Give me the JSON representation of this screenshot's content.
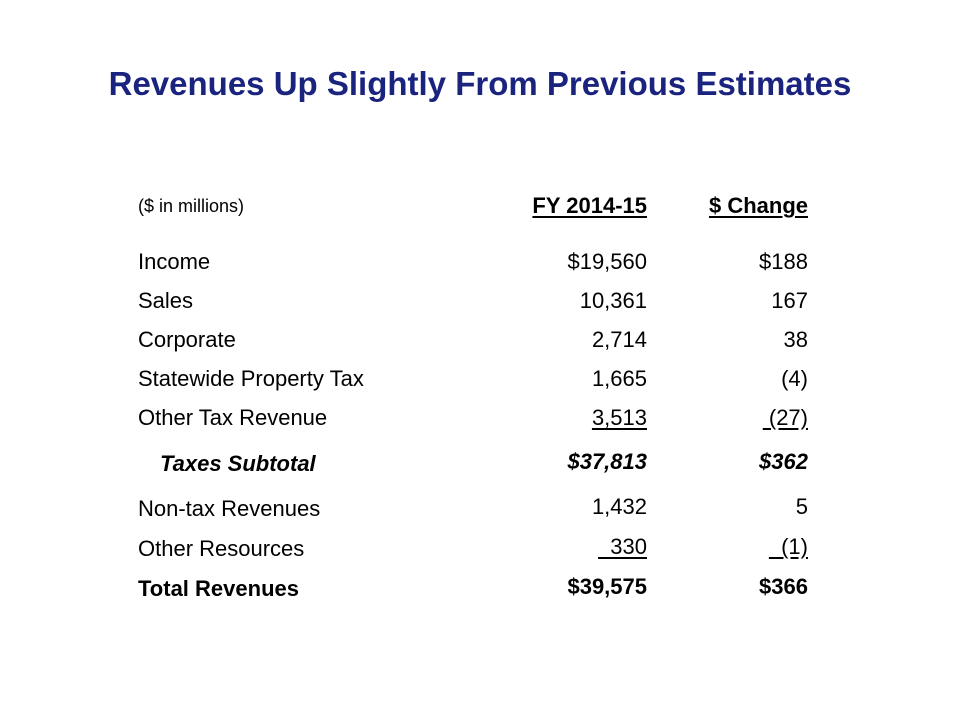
{
  "title": "Revenues Up Slightly From Previous Estimates",
  "table": {
    "units_label": "($ in millions)",
    "col_fy": "FY 2014-15",
    "col_change": "$ Change",
    "rows": [
      {
        "label": "Income",
        "fy": "$19,560",
        "change": "$188"
      },
      {
        "label": "Sales",
        "fy": "10,361",
        "change": "167"
      },
      {
        "label": "Corporate",
        "fy": "2,714",
        "change": "38"
      },
      {
        "label": "Statewide Property Tax",
        "fy": "1,665",
        "change": "(4)"
      },
      {
        "label": "Other Tax Revenue",
        "fy": "3,513",
        "change": " (27)"
      },
      {
        "label": "Taxes Subtotal",
        "fy": "$37,813",
        "change": "$362"
      },
      {
        "label": "Non-tax Revenues",
        "fy": "1,432",
        "change": "5"
      },
      {
        "label": "Other Resources",
        "fy": "  330",
        "change": "  (1)"
      },
      {
        "label": "Total Revenues",
        "fy": "$39,575",
        "change": "$366"
      }
    ]
  },
  "colors": {
    "title": "#1a237e",
    "text": "#000000",
    "background": "#ffffff"
  }
}
